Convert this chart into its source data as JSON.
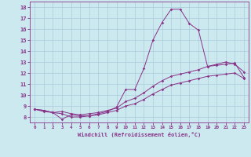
{
  "xlabel": "Windchill (Refroidissement éolien,°C)",
  "bg_color": "#cde9f0",
  "line_color": "#883388",
  "grid_color": "#aaccdd",
  "xlim": [
    -0.5,
    23.5
  ],
  "ylim": [
    7.5,
    18.5
  ],
  "xticks": [
    0,
    1,
    2,
    3,
    4,
    5,
    6,
    7,
    8,
    9,
    10,
    11,
    12,
    13,
    14,
    15,
    16,
    17,
    18,
    19,
    20,
    21,
    22,
    23
  ],
  "yticks": [
    8,
    9,
    10,
    11,
    12,
    13,
    14,
    15,
    16,
    17,
    18
  ],
  "series1_x": [
    0,
    1,
    2,
    3,
    4,
    5,
    6,
    7,
    8,
    9,
    10,
    11,
    12,
    13,
    14,
    15,
    16,
    17,
    18,
    19,
    20,
    21,
    22,
    23
  ],
  "series1_y": [
    8.7,
    8.6,
    8.4,
    7.8,
    8.2,
    8.1,
    8.1,
    8.3,
    8.5,
    8.9,
    10.5,
    10.5,
    12.4,
    15.0,
    16.6,
    17.8,
    17.8,
    16.5,
    15.9,
    12.6,
    12.8,
    13.0,
    12.8,
    12.1
  ],
  "series2_x": [
    0,
    1,
    2,
    3,
    4,
    5,
    6,
    7,
    8,
    9,
    10,
    11,
    12,
    13,
    14,
    15,
    16,
    17,
    18,
    19,
    20,
    21,
    22,
    23
  ],
  "series2_y": [
    8.7,
    8.6,
    8.4,
    8.5,
    8.3,
    8.2,
    8.3,
    8.4,
    8.6,
    8.8,
    9.4,
    9.7,
    10.2,
    10.8,
    11.3,
    11.7,
    11.9,
    12.1,
    12.3,
    12.6,
    12.7,
    12.8,
    12.9,
    11.6
  ],
  "series3_x": [
    0,
    1,
    2,
    3,
    4,
    5,
    6,
    7,
    8,
    9,
    10,
    11,
    12,
    13,
    14,
    15,
    16,
    17,
    18,
    19,
    20,
    21,
    22,
    23
  ],
  "series3_y": [
    8.7,
    8.5,
    8.4,
    8.3,
    8.0,
    8.0,
    8.1,
    8.2,
    8.4,
    8.6,
    9.0,
    9.2,
    9.6,
    10.1,
    10.5,
    10.9,
    11.1,
    11.3,
    11.5,
    11.7,
    11.8,
    11.9,
    12.0,
    11.5
  ]
}
